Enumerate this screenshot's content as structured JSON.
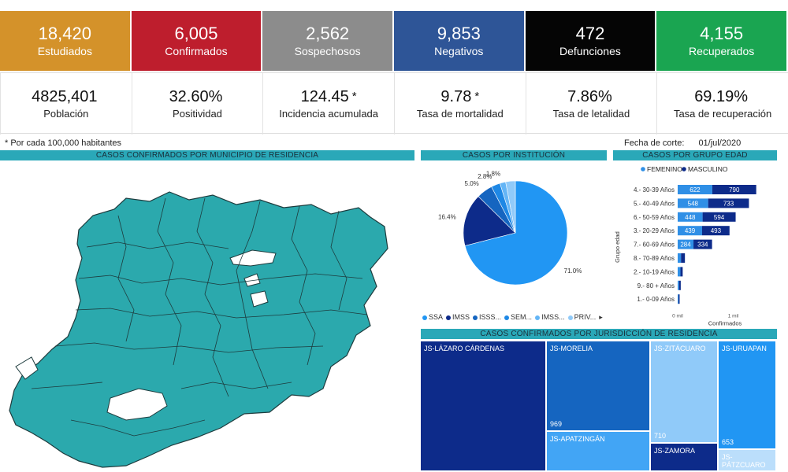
{
  "kpis": [
    {
      "value": "18,420",
      "label": "Estudiados",
      "color": "#d4922a"
    },
    {
      "value": "6,005",
      "label": "Confirmados",
      "color": "#be1e2d"
    },
    {
      "value": "2,562",
      "label": "Sospechosos",
      "color": "#8c8c8c"
    },
    {
      "value": "9,853",
      "label": "Negativos",
      "color": "#2e5597"
    },
    {
      "value": "472",
      "label": "Defunciones",
      "color": "#050505"
    },
    {
      "value": "4,155",
      "label": "Recuperados",
      "color": "#1aa551"
    }
  ],
  "stats": [
    {
      "value": "4825,401",
      "label": "Población",
      "star": ""
    },
    {
      "value": "32.60%",
      "label": "Positividad",
      "star": ""
    },
    {
      "value": "124.45",
      "label": "Incidencia acumulada",
      "star": "*"
    },
    {
      "value": "9.78",
      "label": "Tasa de mortalidad",
      "star": "*"
    },
    {
      "value": "7.86%",
      "label": "Tasa de letalidad",
      "star": ""
    },
    {
      "value": "69.19%",
      "label": "Tasa de recuperación",
      "star": ""
    }
  ],
  "footnote": "* Por cada 100,000 habitantes",
  "cutoff": {
    "label": "Fecha de corte:",
    "value": "01/jul/2020"
  },
  "headers": {
    "map": "CASOS CONFIRMADOS POR MUNICIPIO DE RESIDENCIA",
    "pie": "CASOS POR INSTITUCIÓN",
    "bar": "CASOS POR GRUPO EDAD",
    "treemap": "CASOS CONFIRMADOS POR JURISDICCIÓN DE RESIDENCIA"
  },
  "colors": {
    "map_fill": "#2ba9ad",
    "header_bg": "#2aa8b8"
  },
  "chart_data": [
    {
      "type": "pie",
      "title": "CASOS POR INSTITUCIÓN",
      "slices": [
        {
          "name": "SSA",
          "value": 71.0,
          "label": "71.0%",
          "color": "#2196f3"
        },
        {
          "name": "IMSS",
          "value": 16.4,
          "label": "16.4%",
          "color": "#0d2b8a"
        },
        {
          "name": "ISSS...",
          "value": 5.0,
          "label": "5.0%",
          "color": "#1565c0"
        },
        {
          "name": "SEM...",
          "value": 2.8,
          "label": "2.8%",
          "color": "#1e88e5"
        },
        {
          "name": "IMSS...",
          "value": 1.8,
          "label": "1.8%",
          "color": "#64b5f6"
        },
        {
          "name": "PRIV...",
          "value": 3.0,
          "label": "",
          "color": "#90caf9"
        }
      ],
      "legend": [
        "SSA",
        "IMSS",
        "ISSS...",
        "SEM...",
        "IMSS...",
        "PRIV..."
      ],
      "legend_more": "▸"
    },
    {
      "type": "bar",
      "orientation": "horizontal",
      "stacked": true,
      "title": "CASOS POR GRUPO EDAD",
      "ylabel": "Grupo edad",
      "xlabel": "Confirmados",
      "xticks": [
        "0 mil",
        "1 mil"
      ],
      "xlim": [
        0,
        1700
      ],
      "categories": [
        "4.- 30-39 Años",
        "5.- 40-49 Años",
        "6.- 50-59 Años",
        "3.- 20-29 Años",
        "7.- 60-69 Años",
        "8.- 70-89 Años",
        "2.- 10-19 Años",
        "9.- 80 + Años",
        "1.- 0-09 Años"
      ],
      "series": [
        {
          "name": "FEMENINO",
          "color": "#2f8fe6",
          "values": [
            622,
            548,
            448,
            439,
            284,
            60,
            50,
            25,
            15
          ],
          "labels": [
            "622",
            "548",
            "448",
            "439",
            "284",
            "",
            "",
            "",
            ""
          ]
        },
        {
          "name": "MASCULINO",
          "color": "#0d2b8a",
          "values": [
            790,
            733,
            594,
            493,
            334,
            70,
            40,
            30,
            20
          ],
          "labels": [
            "790",
            "733",
            "594",
            "493",
            "334",
            "",
            "",
            "",
            ""
          ]
        }
      ]
    },
    {
      "type": "treemap",
      "title": "CASOS CONFIRMADOS POR JURISDICCIÓN DE RESIDENCIA",
      "items": [
        {
          "name": "JS-LÁZARO CÁRDENAS",
          "value": 1700,
          "label": "",
          "color": "#0d2b8a"
        },
        {
          "name": "JS-MORELIA",
          "value": 969,
          "label": "969",
          "color": "#1565c0"
        },
        {
          "name": "JS-APATZINGÁN",
          "value": 430,
          "label": "",
          "color": "#42a5f5"
        },
        {
          "name": "JS-ZITÁCUARO",
          "value": 710,
          "label": "710",
          "color": "#90caf9"
        },
        {
          "name": "JS-ZAMORA",
          "value": 200,
          "label": "",
          "color": "#0d2b8a"
        },
        {
          "name": "JS-URUAPAN",
          "value": 653,
          "label": "653",
          "color": "#2196f3"
        },
        {
          "name": "JS-PÁTZCUARO",
          "value": 130,
          "label": "",
          "color": "#bbdefb"
        }
      ]
    }
  ]
}
